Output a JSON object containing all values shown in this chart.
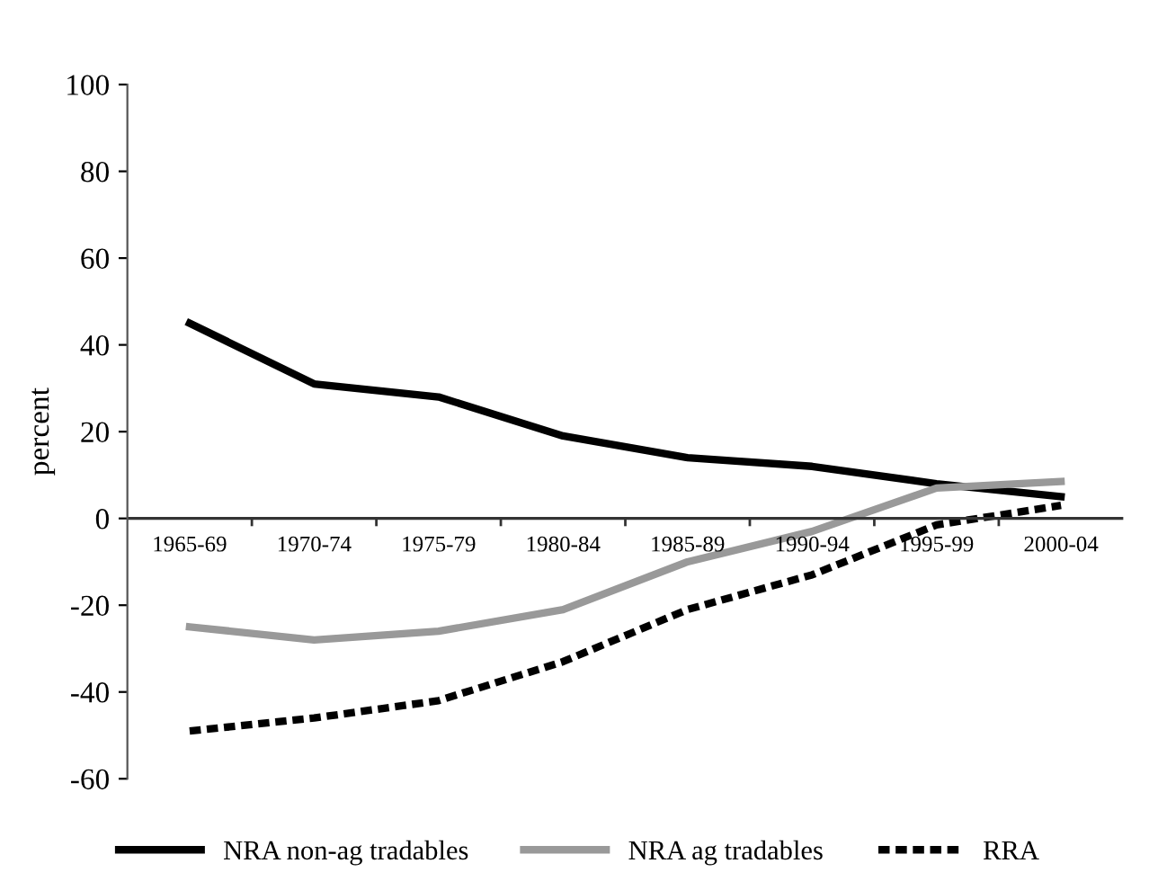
{
  "chart_data": {
    "type": "line",
    "ylabel": "percent",
    "categories": [
      "1965-69",
      "1970-74",
      "1975-79",
      "1980-84",
      "1985-89",
      "1990-94",
      "1995-99",
      "2000-04"
    ],
    "series": [
      {
        "name": "NRA non-ag tradables",
        "color": "#000000",
        "line_style": "solid",
        "values": [
          45,
          31,
          28,
          19,
          14,
          12,
          8,
          5
        ]
      },
      {
        "name": "NRA ag tradables",
        "color": "#999999",
        "line_style": "solid",
        "values": [
          -25,
          -28,
          -26,
          -21,
          -10,
          -3,
          7,
          8.5
        ]
      },
      {
        "name": "RRA",
        "color": "#000000",
        "line_style": "dotted",
        "values": [
          -49,
          -46,
          -42,
          -33,
          -21,
          -13,
          -1.5,
          3
        ]
      }
    ],
    "ylim": [
      -60,
      100
    ],
    "yticks": [
      -60,
      -40,
      -20,
      0,
      20,
      40,
      60,
      80,
      100
    ],
    "grid": false,
    "legend": "bottom"
  }
}
